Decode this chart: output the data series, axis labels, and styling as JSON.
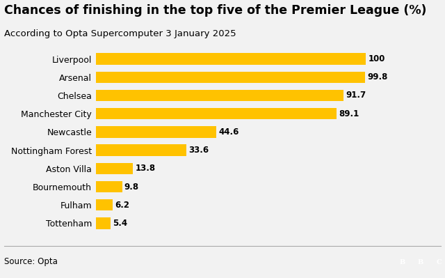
{
  "title": "Chances of finishing in the top five of the Premier League (%)",
  "subtitle": "According to Opta Supercomputer 3 January 2025",
  "source": "Source: Opta",
  "categories": [
    "Liverpool",
    "Arsenal",
    "Chelsea",
    "Manchester City",
    "Newcastle",
    "Nottingham Forest",
    "Aston Villa",
    "Bournemouth",
    "Fulham",
    "Tottenham"
  ],
  "values": [
    100,
    99.8,
    91.7,
    89.1,
    44.6,
    33.6,
    13.8,
    9.8,
    6.2,
    5.4
  ],
  "bar_color": "#FFC200",
  "background_color": "#f2f2f2",
  "text_color": "#000000",
  "title_fontsize": 12.5,
  "subtitle_fontsize": 9.5,
  "label_fontsize": 9.0,
  "value_fontsize": 8.5,
  "source_fontsize": 8.5,
  "xlim": [
    0,
    112
  ]
}
